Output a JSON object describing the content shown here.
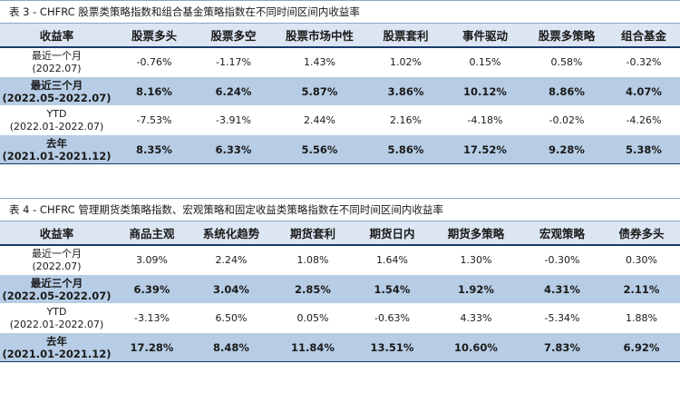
{
  "table3": {
    "caption": "表 3 - CHFRC 股票类策略指数和组合基金策略指数在不同时间区间内收益率",
    "headers": [
      "收益率",
      "股票多头",
      "股票多空",
      "股票市场中性",
      "股票套利",
      "事件驱动",
      "股票多策略",
      "组合基金"
    ],
    "rows": [
      {
        "label": "最近一个月",
        "sub": "(2022.07)",
        "shaded": false,
        "values": [
          "-0.76%",
          "-1.17%",
          "1.43%",
          "1.02%",
          "0.15%",
          "0.58%",
          "-0.32%"
        ]
      },
      {
        "label": "最近三个月",
        "sub": "(2022.05-2022.07)",
        "shaded": true,
        "values": [
          "8.16%",
          "6.24%",
          "5.87%",
          "3.86%",
          "10.12%",
          "8.86%",
          "4.07%"
        ]
      },
      {
        "label": "YTD",
        "sub": "(2022.01-2022.07)",
        "shaded": false,
        "values": [
          "-7.53%",
          "-3.91%",
          "2.44%",
          "2.16%",
          "-4.18%",
          "-0.02%",
          "-4.26%"
        ]
      },
      {
        "label": "去年",
        "sub": "(2021.01-2021.12)",
        "shaded": true,
        "values": [
          "8.35%",
          "6.33%",
          "5.56%",
          "5.86%",
          "17.52%",
          "9.28%",
          "5.38%"
        ]
      }
    ]
  },
  "table4": {
    "caption": "表 4 - CHFRC 管理期货类策略指数、宏观策略和固定收益类策略指数在不同时间区间内收益率",
    "headers": [
      "收益率",
      "商品主观",
      "系统化趋势",
      "期货套利",
      "期货日内",
      "期货多策略",
      "宏观策略",
      "债券多头"
    ],
    "rows": [
      {
        "label": "最近一个月",
        "sub": "(2022.07)",
        "shaded": false,
        "values": [
          "3.09%",
          "2.24%",
          "1.08%",
          "1.64%",
          "1.30%",
          "-0.30%",
          "0.30%"
        ]
      },
      {
        "label": "最近三个月",
        "sub": "(2022.05-2022.07)",
        "shaded": true,
        "values": [
          "6.39%",
          "3.04%",
          "2.85%",
          "1.54%",
          "1.92%",
          "4.31%",
          "2.11%"
        ]
      },
      {
        "label": "YTD",
        "sub": "(2022.01-2022.07)",
        "shaded": false,
        "values": [
          "-3.13%",
          "6.50%",
          "0.05%",
          "-0.63%",
          "4.33%",
          "-5.34%",
          "1.88%"
        ]
      },
      {
        "label": "去年",
        "sub": "(2021.01-2021.12)",
        "shaded": true,
        "values": [
          "17.28%",
          "8.48%",
          "11.84%",
          "13.51%",
          "10.60%",
          "7.83%",
          "6.92%"
        ]
      }
    ]
  },
  "colors": {
    "header_bg": "#dce6f2",
    "shaded_row_bg": "#b7cde5",
    "rule": "#1a3a6c"
  }
}
